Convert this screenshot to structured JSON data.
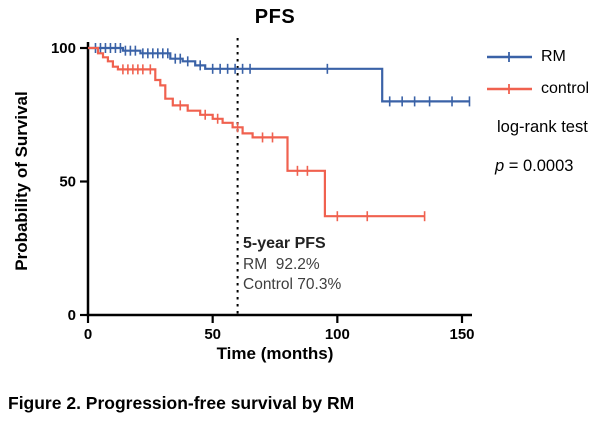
{
  "text": {
    "legend_note": "log-rank test",
    "p_symbol": "p",
    "p_rest": " = 0.0003",
    "ann_title": "5-year PFS",
    "ann_rm": "RM  92.2%",
    "ann_control": "Control 70.3%",
    "caption": "Figure 2. Progression-free survival by RM"
  },
  "chart_data": {
    "type": "line",
    "subtype": "kaplan-meier-step",
    "title": "PFS",
    "xlabel": "Time (months)",
    "ylabel": "Probability of Survival",
    "xlim": [
      0,
      160
    ],
    "ylim": [
      0,
      100
    ],
    "x_ticks": [
      0,
      50,
      100,
      150
    ],
    "y_ticks": [
      100,
      50,
      0
    ],
    "reference_line_x": 60,
    "grid": false,
    "legend_position": "right",
    "series": [
      {
        "name": "RM",
        "color": "#3a62a7",
        "step_points": [
          [
            0,
            100
          ],
          [
            14,
            100
          ],
          [
            14,
            99
          ],
          [
            21,
            99
          ],
          [
            21,
            98
          ],
          [
            33,
            98
          ],
          [
            33,
            96
          ],
          [
            38,
            96
          ],
          [
            38,
            95
          ],
          [
            43,
            95
          ],
          [
            43,
            93.5
          ],
          [
            47,
            93.5
          ],
          [
            47,
            92.2
          ],
          [
            118,
            92.2
          ],
          [
            118,
            80
          ],
          [
            153,
            80
          ]
        ],
        "censor_times": [
          3,
          5,
          7,
          9,
          11,
          13,
          15,
          17,
          19,
          22,
          24,
          26,
          28,
          30,
          32,
          35,
          37,
          40,
          45,
          50,
          53,
          56,
          59,
          62,
          65,
          96,
          121,
          126,
          131,
          137,
          146,
          153
        ]
      },
      {
        "name": "control",
        "color": "#f0614f",
        "step_points": [
          [
            0,
            100
          ],
          [
            4,
            100
          ],
          [
            4,
            98
          ],
          [
            6,
            98
          ],
          [
            6,
            96.5
          ],
          [
            8,
            96.5
          ],
          [
            8,
            95
          ],
          [
            10,
            95
          ],
          [
            10,
            93
          ],
          [
            12,
            93
          ],
          [
            12,
            92
          ],
          [
            27,
            92
          ],
          [
            27,
            88
          ],
          [
            29,
            88
          ],
          [
            29,
            86
          ],
          [
            31,
            86
          ],
          [
            31,
            81
          ],
          [
            34,
            81
          ],
          [
            34,
            78.5
          ],
          [
            40,
            78.5
          ],
          [
            40,
            76.5
          ],
          [
            45,
            76.5
          ],
          [
            45,
            75
          ],
          [
            50,
            75
          ],
          [
            50,
            73.5
          ],
          [
            54,
            73.5
          ],
          [
            54,
            72
          ],
          [
            58,
            72
          ],
          [
            58,
            70.3
          ],
          [
            62,
            70.3
          ],
          [
            62,
            68
          ],
          [
            66,
            68
          ],
          [
            66,
            66.5
          ],
          [
            80,
            66.5
          ],
          [
            80,
            54
          ],
          [
            95,
            54
          ],
          [
            95,
            37
          ],
          [
            135,
            37
          ]
        ],
        "censor_times": [
          14,
          16,
          18,
          20,
          22,
          25,
          37,
          47,
          52,
          60,
          70,
          74,
          84,
          88,
          100,
          112,
          135
        ]
      }
    ],
    "annotations": {
      "five_year_pfs": {
        "RM": "92.2%",
        "control": "70.3%"
      },
      "log_rank_test_p": 0.0003
    }
  }
}
